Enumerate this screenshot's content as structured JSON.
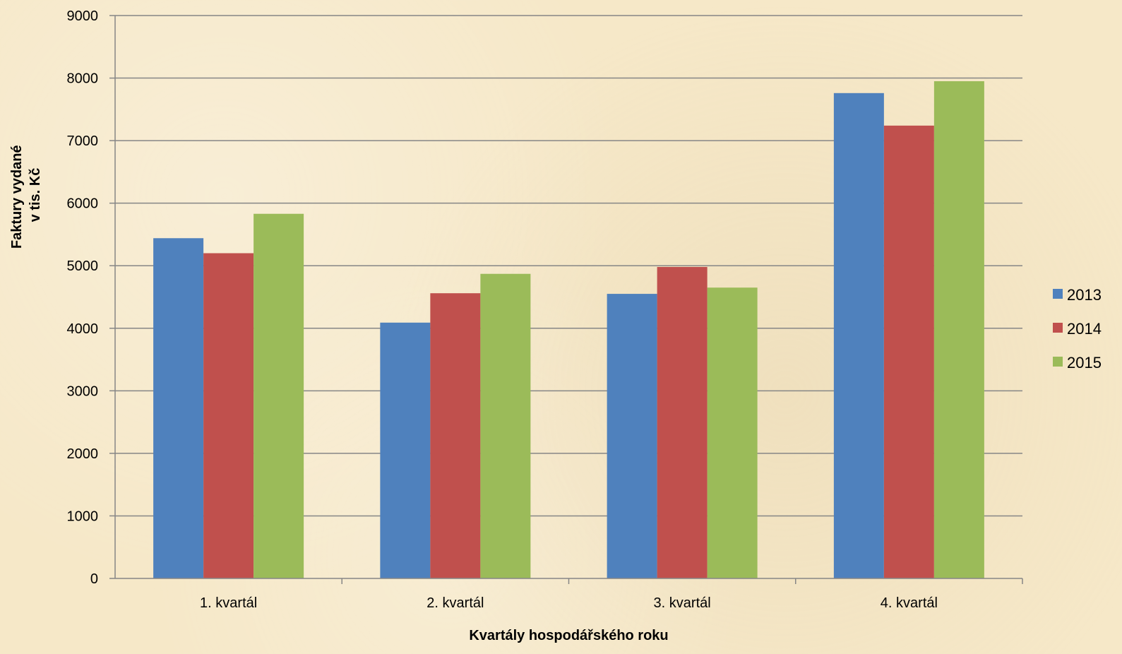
{
  "chart_data": {
    "type": "bar",
    "title": "",
    "xlabel": "Kvartály hospodářského roku",
    "ylabel_lines": [
      "Faktury vydané",
      "v tis. Kč"
    ],
    "categories": [
      "1. kvartál",
      "2. kvartál",
      "3. kvartál",
      "4. kvartál"
    ],
    "series": [
      {
        "name": "2013",
        "color": "#4f81bd",
        "values": [
          5440,
          4090,
          4550,
          7760
        ]
      },
      {
        "name": "2014",
        "color": "#c0504d",
        "values": [
          5200,
          4560,
          4980,
          7240
        ]
      },
      {
        "name": "2015",
        "color": "#9bbb59",
        "values": [
          5830,
          4870,
          4650,
          7950
        ]
      }
    ],
    "ylim": [
      0,
      9000
    ],
    "yticks": [
      "0",
      "1000",
      "2000",
      "3000",
      "4000",
      "5000",
      "6000",
      "7000",
      "8000",
      "9000"
    ],
    "grid": true,
    "legend_position": "right"
  }
}
